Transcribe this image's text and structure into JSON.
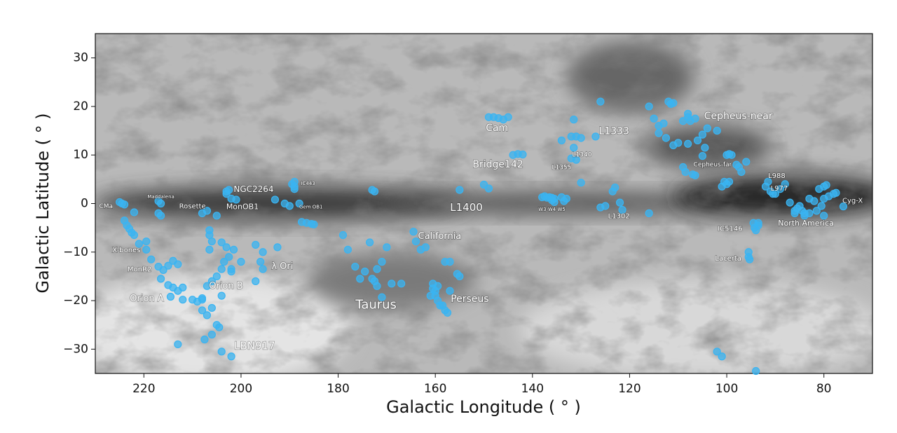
{
  "chart_data": {
    "type": "scatter",
    "xlabel": "Galactic Longitude ( ° )",
    "ylabel": "Galactic Latitude ( ° )",
    "xlim": [
      230,
      70
    ],
    "ylim": [
      -35,
      35
    ],
    "xticks": [
      220,
      200,
      180,
      160,
      140,
      120,
      100,
      80
    ],
    "yticks": [
      {
        "value": -30,
        "label": "−30"
      },
      {
        "value": -20,
        "label": "−20"
      },
      {
        "value": -10,
        "label": "−10"
      },
      0,
      10,
      20,
      30
    ],
    "color": "#3ab4f2",
    "x": [
      225,
      224.5,
      224,
      222,
      224,
      223.5,
      223,
      222.5,
      222,
      221,
      219.5,
      219.5,
      218.5,
      217,
      216,
      216.5,
      215,
      214,
      213,
      212,
      212,
      214.5,
      215,
      214,
      213,
      217,
      216.5,
      217,
      216.5,
      210,
      209,
      208,
      207,
      206,
      205,
      204,
      203.5,
      202.5,
      201.5,
      203,
      204,
      206.5,
      206.5,
      206,
      206.5,
      202,
      202,
      200,
      208,
      207,
      206,
      204,
      205,
      206,
      207.5,
      204.5,
      204,
      202,
      213,
      208,
      207,
      208,
      205,
      203,
      202.5,
      202,
      201,
      203,
      197,
      195.5,
      196,
      195.5,
      197,
      192.5,
      193,
      191,
      190,
      189,
      189,
      189.5,
      189,
      188,
      186.5,
      185.5,
      185,
      187.5,
      179,
      178,
      176.5,
      175.5,
      174.5,
      173,
      172,
      172.5,
      172,
      171,
      173.5,
      173,
      172.5,
      170,
      169,
      167,
      171,
      164.5,
      164,
      163,
      162,
      160.5,
      160.5,
      160,
      160,
      159.5,
      159,
      158.5,
      158,
      157.5,
      158,
      157,
      157,
      155.5,
      155,
      161,
      159.5,
      148,
      147,
      146,
      145,
      149,
      143,
      144,
      142,
      155,
      150,
      149,
      131.5,
      132,
      131,
      130,
      131.5,
      132,
      131,
      134,
      126,
      127,
      130,
      138,
      137.5,
      137,
      136.5,
      136,
      135.5,
      134,
      133.5,
      133,
      136,
      135.5,
      126,
      125,
      123.5,
      123,
      122,
      121.5,
      116,
      116,
      115,
      114,
      113,
      112,
      111.5,
      111,
      114,
      112.5,
      111,
      110,
      108,
      108,
      107.5,
      106.5,
      109,
      105,
      104,
      102,
      104.5,
      105,
      106,
      108,
      109,
      108.5,
      107,
      106.5,
      100,
      99.5,
      99,
      98,
      97.5,
      97,
      96,
      100,
      101,
      100.5,
      99.5,
      94.5,
      94.3,
      94,
      93.5,
      95.5,
      95.3,
      93.5,
      95.5,
      102,
      101,
      94,
      91.5,
      92,
      91,
      90.5,
      90,
      89,
      88,
      87,
      86,
      85.5,
      85,
      84.5,
      84,
      83,
      82,
      83,
      81,
      80,
      80,
      80.5,
      79,
      78,
      77.5,
      76,
      79.5,
      81.5,
      84,
      80,
      86
    ],
    "values": [
      0.3,
      0,
      -0.2,
      -1.8,
      -3.5,
      -4.5,
      -5.2,
      -6,
      -6.5,
      -8.3,
      -7.8,
      -9.5,
      -11.5,
      -13,
      -13.7,
      -15.5,
      -16.8,
      -17.3,
      -18,
      -17.3,
      -19.8,
      -19.2,
      -12.8,
      -11.8,
      -12.5,
      0.5,
      0,
      -2,
      -2.5,
      -19.8,
      -20.2,
      -19.5,
      -17,
      -16,
      -15,
      -13.5,
      -12,
      -11,
      -9.5,
      -9,
      -8,
      -5.5,
      -6.5,
      -7.8,
      -9.5,
      -13.5,
      -14,
      -12,
      -22,
      -23,
      -21.5,
      -19,
      -25,
      -27,
      -28,
      -25.5,
      -30.5,
      -31.5,
      -29,
      -19.8,
      -1.5,
      -2,
      -2.5,
      2.5,
      2.8,
      1,
      0.8,
      2,
      -8.5,
      -10,
      -12,
      -13.5,
      -16,
      -9,
      0.8,
      0,
      -0.5,
      4.5,
      3.5,
      4,
      3,
      0,
      -4,
      -4.2,
      -4.3,
      -3.8,
      -6.5,
      -9.5,
      -13,
      -15.5,
      -14,
      -15.5,
      -17,
      -16,
      -13.5,
      -12,
      -8,
      2.8,
      2.5,
      -9,
      -16.5,
      -16.5,
      -19.3,
      -5.8,
      -7.8,
      -9.5,
      -9,
      -16.5,
      -17.5,
      -18,
      -19,
      -20,
      -21,
      -21,
      -22,
      -22.5,
      -12,
      -12,
      -18,
      -14.5,
      -15,
      -19,
      -17,
      17.8,
      17.6,
      17.3,
      17.8,
      17.8,
      10.2,
      10,
      10.1,
      2.8,
      3.9,
      3.1,
      17.3,
      13.8,
      13.8,
      13.5,
      11.5,
      9.3,
      9,
      13,
      21,
      13.8,
      4.3,
      1.3,
      1.5,
      1.2,
      1.3,
      1.2,
      1,
      1.3,
      0.5,
      1,
      0.7,
      0.3,
      -0.8,
      -0.5,
      2.5,
      3.3,
      0.2,
      -1.3,
      -2,
      20,
      17.5,
      16,
      16.5,
      21,
      20.5,
      20.7,
      14.5,
      13.5,
      12,
      12.5,
      18.5,
      17.8,
      17,
      17.5,
      17,
      14.2,
      15.5,
      15,
      11.5,
      9.8,
      13,
      12.3,
      7.5,
      6.5,
      6,
      5.8,
      10,
      10.2,
      10,
      8,
      7.5,
      6.5,
      8.6,
      4,
      3.5,
      4.5,
      4.5,
      -4,
      -5,
      -5.5,
      -4.5,
      -10,
      -11.5,
      -4,
      -11,
      -30.5,
      -31.5,
      -34.5,
      4.5,
      3.5,
      2.5,
      2,
      2,
      3,
      4,
      0.2,
      -1.5,
      -1,
      -0.5,
      -1.5,
      -2,
      -2,
      0.5,
      1,
      3,
      3.5,
      1,
      -0.5,
      1.5,
      2,
      2.2,
      -0.6,
      3.8,
      -1.5,
      -2.5,
      -2.5,
      -2
    ],
    "annotations": [
      {
        "text": "CMa",
        "x": 227.8,
        "y": -0.6
      },
      {
        "text": "Maddalena",
        "x": 216.5,
        "y": 1.4
      },
      {
        "text": "Rosette",
        "x": 210,
        "y": -0.6
      },
      {
        "text": "NGC2264",
        "x": 197.4,
        "y": 2.9
      },
      {
        "text": "MonOB1",
        "x": 199.7,
        "y": -0.7
      },
      {
        "text": "IC443",
        "x": 186.2,
        "y": 4.1
      },
      {
        "text": "Gem OB1",
        "x": 185.6,
        "y": -0.7
      },
      {
        "text": "X-bones",
        "x": 223.6,
        "y": -9.6
      },
      {
        "text": "MonR2",
        "x": 220.9,
        "y": -13.6
      },
      {
        "text": "Orion A",
        "x": 219.4,
        "y": -19.6
      },
      {
        "text": "Orion B",
        "x": 203.1,
        "y": -17
      },
      {
        "text": "λ Ori",
        "x": 191.5,
        "y": -13
      },
      {
        "text": "LBN917",
        "x": 197.2,
        "y": -29.4
      },
      {
        "text": "Taurus",
        "x": 172.2,
        "y": -20.9
      },
      {
        "text": "California",
        "x": 159.1,
        "y": -6.8
      },
      {
        "text": "Perseus",
        "x": 152.9,
        "y": -19.7
      },
      {
        "text": "L1400",
        "x": 153.6,
        "y": -0.9
      },
      {
        "text": "Cam",
        "x": 147.3,
        "y": 15.5
      },
      {
        "text": "Bridge142",
        "x": 147.1,
        "y": 8
      },
      {
        "text": "L1333",
        "x": 123.2,
        "y": 14.9
      },
      {
        "text": "L1340",
        "x": 129.8,
        "y": 10
      },
      {
        "text": "L1355",
        "x": 134,
        "y": 7.4
      },
      {
        "text": "W3-W4-W5",
        "x": 136,
        "y": -1.2
      },
      {
        "text": "L1302",
        "x": 122.2,
        "y": -2.6
      },
      {
        "text": "Cepheus-near",
        "x": 97.6,
        "y": 18
      },
      {
        "text": "Cepheus-far",
        "x": 102.9,
        "y": 8
      },
      {
        "text": "L988",
        "x": 89.7,
        "y": 5.7
      },
      {
        "text": "L977",
        "x": 89.2,
        "y": 3.1
      },
      {
        "text": "Cyg-X",
        "x": 74.1,
        "y": 0.6
      },
      {
        "text": "North America",
        "x": 83.7,
        "y": -4.1
      },
      {
        "text": "IC5146",
        "x": 99.3,
        "y": -5.2
      },
      {
        "text": "Lacerta",
        "x": 99.7,
        "y": -11.3
      }
    ]
  }
}
